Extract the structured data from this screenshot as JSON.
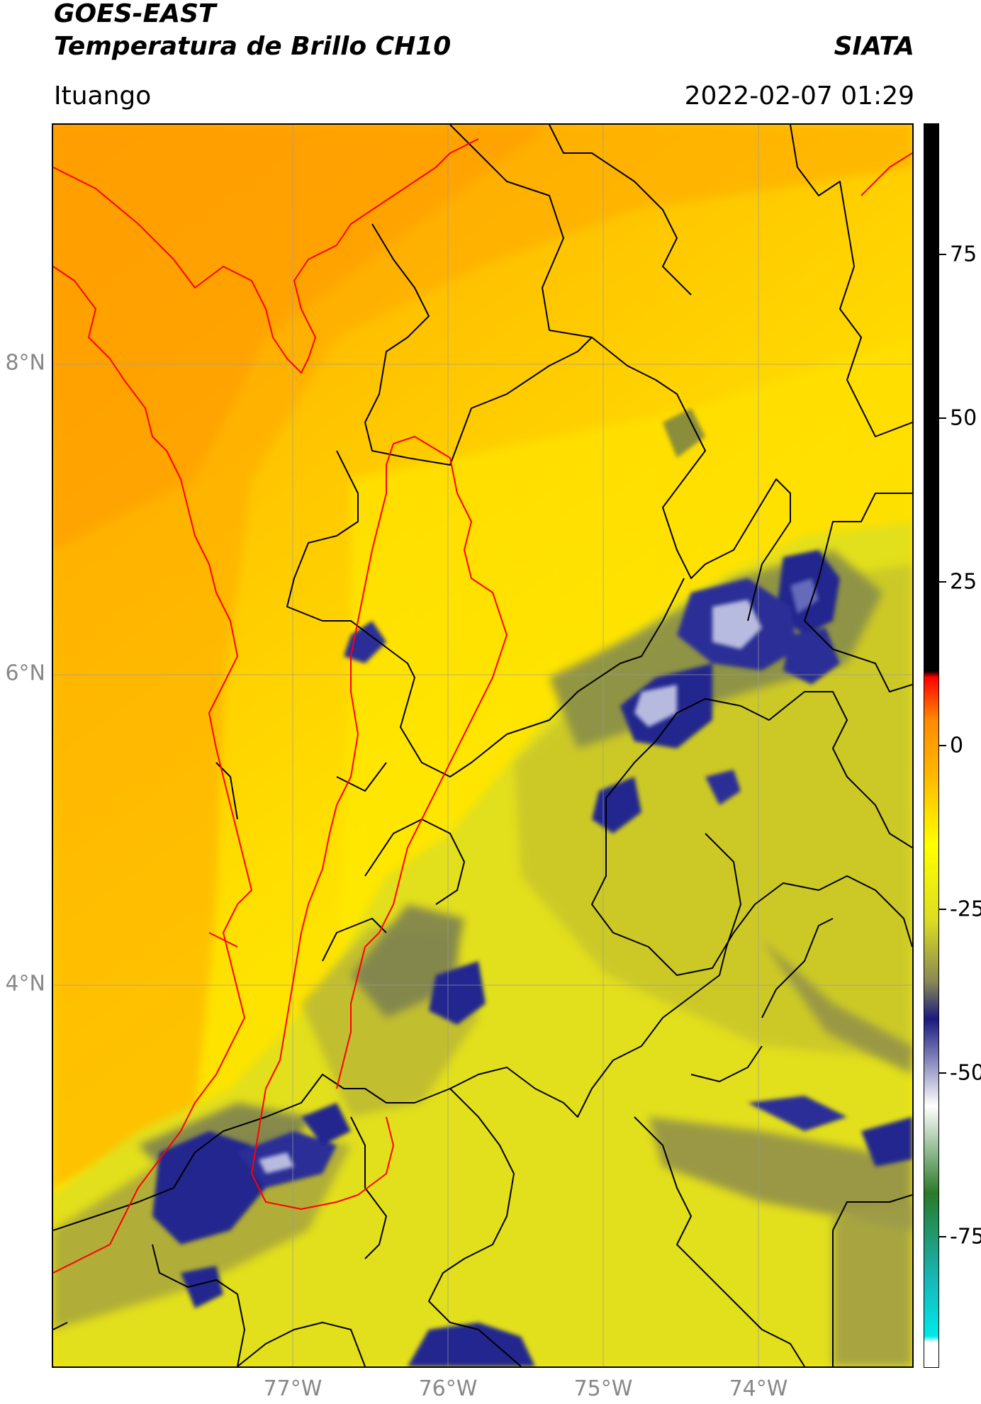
{
  "header": {
    "title_line1": "GOES-EAST",
    "title_line2": "Temperatura de Brillo CH10",
    "brand": "SIATA",
    "region": "Ituango",
    "datetime": "2022-02-07 01:29"
  },
  "map": {
    "latitude_labels": [
      "8°N",
      "6°N",
      "4°N"
    ],
    "longitude_labels": [
      "77°W",
      "76°W",
      "75°W",
      "74°W"
    ],
    "grid_visible": true,
    "colors": {
      "warm_background": "#ffb400",
      "cloud_mid": "#e2df1c",
      "cloud_cold": "#888e4a",
      "cloud_coldest": "#24288e",
      "boundary_black": "#000000",
      "boundary_red": "#ff0000"
    }
  },
  "colorbar": {
    "tick_labels": [
      "75",
      "50",
      "25",
      "0",
      "-25",
      "-50",
      "-75"
    ],
    "tick_values": [
      75,
      50,
      25,
      0,
      -25,
      -50,
      -75
    ],
    "range": [
      -95,
      95
    ],
    "colors_top_to_bottom": [
      "#000000",
      "#000000",
      "#ff0000",
      "#ff8c00",
      "#ffb400",
      "#ffff00",
      "#dddd22",
      "#888855",
      "#1a1a80",
      "#ffffff",
      "#2a7a2a",
      "#18b8b8",
      "#00e8e8",
      "#ffffff"
    ],
    "color_stops": [
      0,
      0.44,
      0.445,
      0.48,
      0.52,
      0.58,
      0.64,
      0.69,
      0.72,
      0.79,
      0.86,
      0.93,
      0.975,
      0.98
    ]
  }
}
